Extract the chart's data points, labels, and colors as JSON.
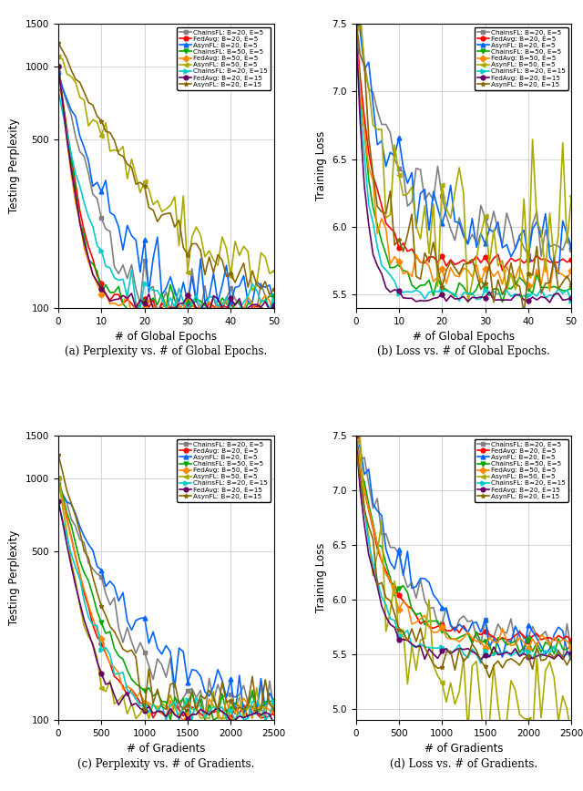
{
  "series": [
    {
      "label": "ChainsFL: B=20, E=5",
      "color": "#808080",
      "marker": "s",
      "lw": 1.2
    },
    {
      "label": "FedAvg: B=20, E=5",
      "color": "#ff0000",
      "marker": "o",
      "lw": 1.2
    },
    {
      "label": "AsynFL: B=20, E=5",
      "color": "#0066ff",
      "marker": "^",
      "lw": 1.2
    },
    {
      "label": "ChainsFL: B=50, E=5",
      "color": "#00aa00",
      "marker": "v",
      "lw": 1.2
    },
    {
      "label": "FedAvg: B=50, E=5",
      "color": "#ff8800",
      "marker": "D",
      "lw": 1.2
    },
    {
      "label": "AsynFL: B=50, E=5",
      "color": "#aaaa00",
      "marker": "<",
      "lw": 1.2
    },
    {
      "label": "ChainsFL: B=20, E=15",
      "color": "#00cccc",
      "marker": ">",
      "lw": 1.2
    },
    {
      "label": "FedAvg: B=20, E=15",
      "color": "#660066",
      "marker": "o",
      "lw": 1.2
    },
    {
      "label": "AsynFL: B=20, E=15",
      "color": "#886600",
      "marker": "*",
      "lw": 1.2
    }
  ],
  "subplot_captions": [
    "(a) Perplexity vs. # of Global Epochs.",
    "(b) Loss vs. # of Global Epochs.",
    "(c) Perplexity vs. # of Gradients.",
    "(d) Loss vs. # of Gradients."
  ],
  "ylabels": [
    "Testing Perplexity",
    "Training Loss",
    "Testing Perplexity",
    "Training Loss"
  ],
  "xlabels": [
    "# of Global Epochs",
    "# of Global Epochs",
    "# of Gradients",
    "# of Gradients"
  ],
  "perp_ylim": [
    100,
    1500
  ],
  "loss_ylim_epochs": [
    5.4,
    7.5
  ],
  "loss_ylim_grads": [
    4.9,
    7.5
  ],
  "epochs_xlim": [
    0,
    50
  ],
  "grad_xlim": [
    0,
    2500
  ],
  "perp_yticks": [
    100,
    500,
    1000,
    1500
  ],
  "loss_yticks_epochs": [
    5.5,
    6.0,
    6.5,
    7.0,
    7.5
  ],
  "loss_yticks_grad": [
    5.0,
    5.5,
    6.0,
    6.5,
    7.0,
    7.5
  ],
  "epochs_xticks": [
    0,
    10,
    20,
    30,
    40,
    50
  ],
  "grad_xticks": [
    0,
    500,
    1000,
    1500,
    2000,
    2500
  ]
}
